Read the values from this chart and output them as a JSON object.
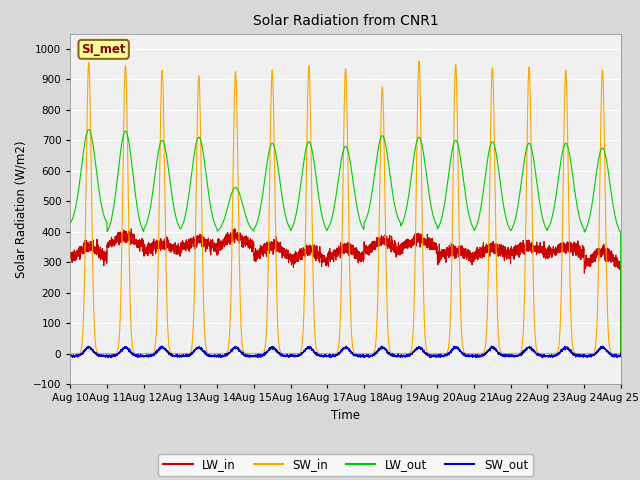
{
  "title": "Solar Radiation from CNR1",
  "xlabel": "Time",
  "ylabel": "Solar Radiation (W/m2)",
  "ylim": [
    -100,
    1050
  ],
  "yticks": [
    -100,
    0,
    100,
    200,
    300,
    400,
    500,
    600,
    700,
    800,
    900,
    1000
  ],
  "xtick_labels": [
    "Aug 10",
    "Aug 11",
    "Aug 12",
    "Aug 13",
    "Aug 14",
    "Aug 15",
    "Aug 16",
    "Aug 17",
    "Aug 18",
    "Aug 19",
    "Aug 20",
    "Aug 21",
    "Aug 22",
    "Aug 23",
    "Aug 24",
    "Aug 25"
  ],
  "fig_facecolor": "#d8d8d8",
  "plot_facecolor": "#f0f0f0",
  "grid_color": "#e8e8e8",
  "colors": {
    "LW_in": "#cc0000",
    "SW_in": "#ffa500",
    "LW_out": "#00cc00",
    "SW_out": "#0000cc"
  },
  "annotation_text": "SI_met",
  "days": 15,
  "pts_per_day": 288,
  "sw_peaks": [
    955,
    945,
    930,
    912,
    925,
    930,
    945,
    935,
    875,
    960,
    950,
    938,
    940,
    930,
    930
  ],
  "lw_in_base": [
    310,
    350,
    330,
    340,
    345,
    310,
    300,
    310,
    330,
    345,
    315,
    320,
    330,
    330,
    285
  ],
  "lw_in_bump": [
    40,
    35,
    30,
    30,
    40,
    45,
    40,
    35,
    40,
    30,
    25,
    25,
    20,
    20,
    50
  ],
  "lw_out_night": [
    415,
    385,
    395,
    395,
    395,
    395,
    390,
    395,
    415,
    405,
    395,
    390,
    390,
    395,
    385
  ],
  "lw_out_peaks": [
    735,
    730,
    700,
    710,
    545,
    690,
    695,
    680,
    715,
    710,
    700,
    695,
    690,
    690,
    675
  ],
  "sw_out_max": 28,
  "sw_out_baseline": -8,
  "lw_noise_std": 10,
  "sw_noise_std": 2
}
